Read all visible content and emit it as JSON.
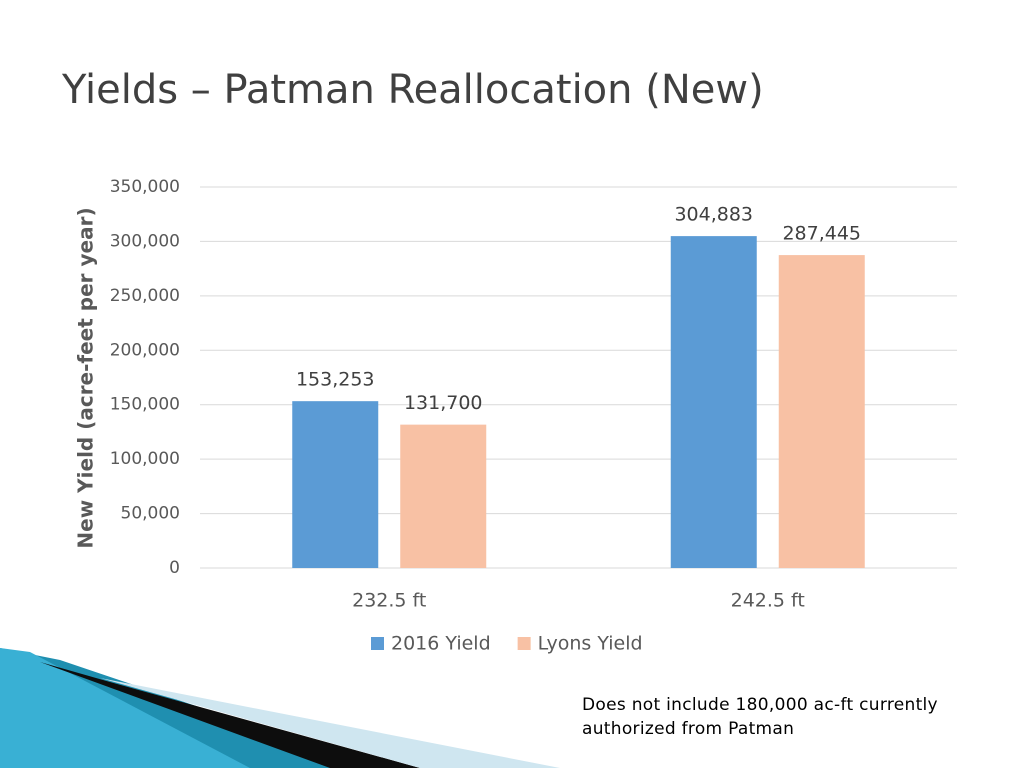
{
  "title": "Yields – Patman Reallocation (New)",
  "chart_data": {
    "type": "bar",
    "ylabel": "New Yield (acre-feet per year)",
    "categories": [
      "232.5 ft",
      "242.5 ft"
    ],
    "series": [
      {
        "name": "2016 Yield",
        "color": "#5b9bd5",
        "values": [
          153253,
          304883
        ],
        "value_labels": [
          "153,253",
          "304,883"
        ]
      },
      {
        "name": "Lyons Yield",
        "color": "#f8c1a4",
        "values": [
          131700,
          287445
        ],
        "value_labels": [
          "131,700",
          "287,445"
        ]
      }
    ],
    "ylim": [
      0,
      350000
    ],
    "yticks": [
      0,
      {
        "value": 50000,
        "label": "50,000"
      },
      {
        "value": 100000,
        "label": "100,000"
      },
      {
        "value": 150000,
        "label": "150,000"
      },
      {
        "value": 200000,
        "label": "200,000"
      },
      {
        "value": 250000,
        "label": "250,000"
      },
      {
        "value": 300000,
        "label": "300,000"
      },
      {
        "value": 350000,
        "label": "350,000"
      }
    ],
    "grid": true,
    "legend": "bottom"
  },
  "note": "Does not include 180,000 ac-ft currently authorized from Patman"
}
